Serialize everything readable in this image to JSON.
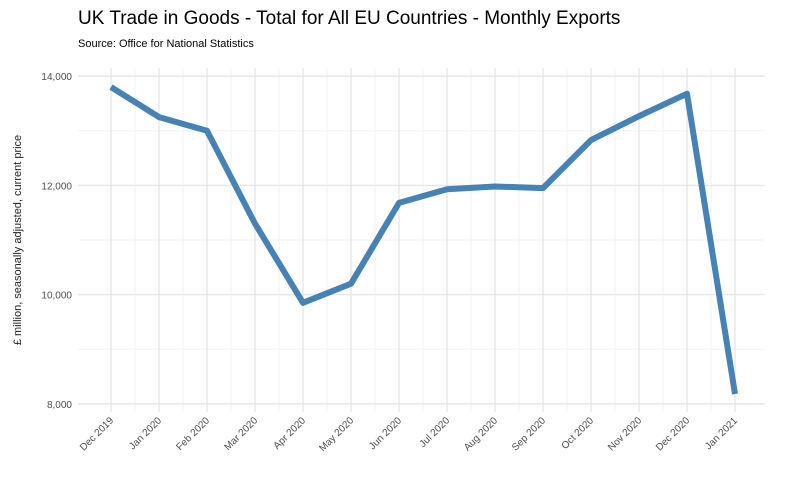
{
  "chart_data": {
    "type": "line",
    "title": "UK Trade in Goods - Total for All EU Countries - Monthly Exports",
    "subtitle": "Source: Office for National Statistics",
    "xlabel": "",
    "ylabel": "£ million, seasonally adjusted, current price",
    "categories": [
      "Dec 2019",
      "Jan 2020",
      "Feb 2020",
      "Mar 2020",
      "Apr 2020",
      "May 2020",
      "Jun 2020",
      "Jul 2020",
      "Aug 2020",
      "Sep 2020",
      "Oct 2020",
      "Nov 2020",
      "Dec 2020",
      "Jan 2021"
    ],
    "values": [
      13800,
      13250,
      13000,
      11300,
      9850,
      10200,
      11680,
      11930,
      11980,
      11950,
      12830,
      13270,
      13680,
      8180
    ],
    "ylim": [
      7850,
      14150
    ],
    "yticks": [
      8000,
      10000,
      12000,
      14000
    ],
    "ytick_labels": [
      "8,000",
      "10,000",
      "12,000",
      "14,000"
    ],
    "line_color": "#4682b4",
    "grid": true,
    "legend": "none"
  }
}
